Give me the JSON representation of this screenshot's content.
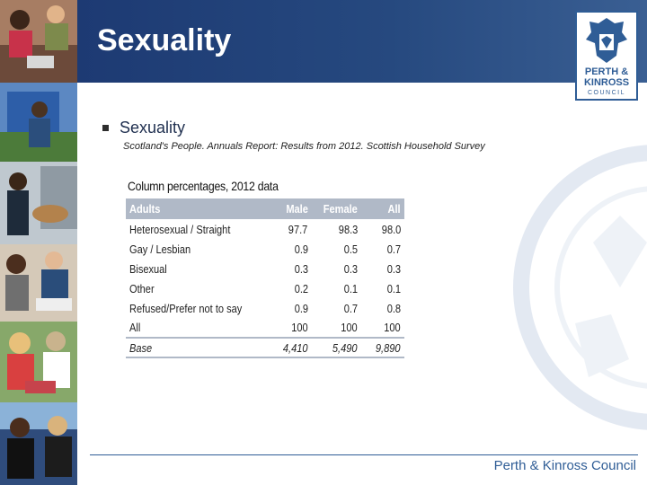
{
  "slide": {
    "title": "Sexuality"
  },
  "bullet": {
    "text": "Sexuality"
  },
  "source": {
    "text": "Scotland's People. Annuals Report: Results from 2012. Scottish Household Survey"
  },
  "logo": {
    "line1": "PERTH &",
    "line2": "KINROSS",
    "line3": "COUNCIL"
  },
  "footer": {
    "brand": "Perth & Kinross Council"
  },
  "table": {
    "title": "Column percentages, 2012 data",
    "headers": [
      "Adults",
      "Male",
      "Female",
      "All"
    ],
    "rows": [
      [
        "Heterosexual / Straight",
        "97.7",
        "98.3",
        "98.0"
      ],
      [
        "Gay / Lesbian",
        "0.9",
        "0.5",
        "0.7"
      ],
      [
        "Bisexual",
        "0.3",
        "0.3",
        "0.3"
      ],
      [
        "Other",
        "0.2",
        "0.1",
        "0.1"
      ],
      [
        "Refused/Prefer not to say",
        "0.9",
        "0.7",
        "0.8"
      ],
      [
        "All",
        "100",
        "100",
        "100"
      ]
    ],
    "base": [
      "Base",
      "4,410",
      "5,490",
      "9,890"
    ]
  },
  "colors": {
    "header_bar": "#26497f",
    "table_header": "#b0b9c7",
    "brand_blue": "#2f5d96"
  }
}
